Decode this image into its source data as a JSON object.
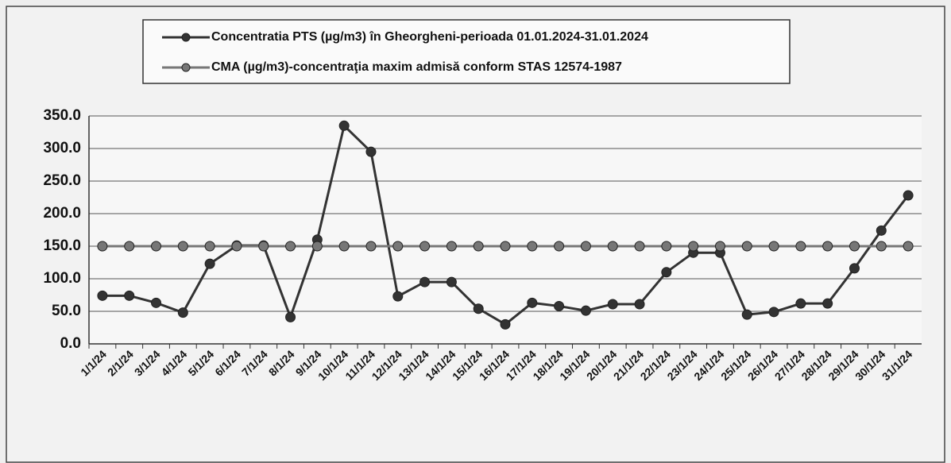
{
  "chart_data": {
    "type": "line",
    "categories": [
      "1/1/24",
      "2/1/24",
      "3/1/24",
      "4/1/24",
      "5/1/24",
      "6/1/24",
      "7/1/24",
      "8/1/24",
      "9/1/24",
      "10/1/24",
      "11/1/24",
      "12/1/24",
      "13/1/24",
      "14/1/24",
      "15/1/24",
      "16/1/24",
      "17/1/24",
      "18/1/24",
      "19/1/24",
      "20/1/24",
      "21/1/24",
      "22/1/24",
      "23/1/24",
      "24/1/24",
      "25/1/24",
      "26/1/24",
      "27/1/24",
      "28/1/24",
      "29/1/24",
      "30/1/24",
      "31/1/24"
    ],
    "series": [
      {
        "name": "Concentratia PTS (µg/m3) în Gheorgheni-perioada 01.01.2024-31.01.2024",
        "color": "#333333",
        "values": [
          74,
          74,
          63,
          48,
          123,
          151,
          151,
          41,
          160,
          335,
          295,
          73,
          95,
          95,
          54,
          30,
          63,
          58,
          51,
          61,
          61,
          110,
          140,
          140,
          45,
          49,
          62,
          62,
          116,
          174,
          228
        ]
      },
      {
        "name": "CMA (µg/m3)-concentraţia maxim admisă conform STAS 12574-1987",
        "color": "#777777",
        "values": [
          150,
          150,
          150,
          150,
          150,
          150,
          150,
          150,
          150,
          150,
          150,
          150,
          150,
          150,
          150,
          150,
          150,
          150,
          150,
          150,
          150,
          150,
          150,
          150,
          150,
          150,
          150,
          150,
          150,
          150,
          150
        ]
      }
    ],
    "ylim": [
      0,
      350
    ],
    "yticks": [
      {
        "value": 0,
        "label": "0.0"
      },
      {
        "value": 50,
        "label": "50.0"
      },
      {
        "value": 100,
        "label": "100.0"
      },
      {
        "value": 150,
        "label": "150.0"
      },
      {
        "value": 200,
        "label": "200.0"
      },
      {
        "value": 250,
        "label": "250.0"
      },
      {
        "value": 300,
        "label": "300.0"
      },
      {
        "value": 350,
        "label": "350.0"
      }
    ],
    "grid": true
  }
}
